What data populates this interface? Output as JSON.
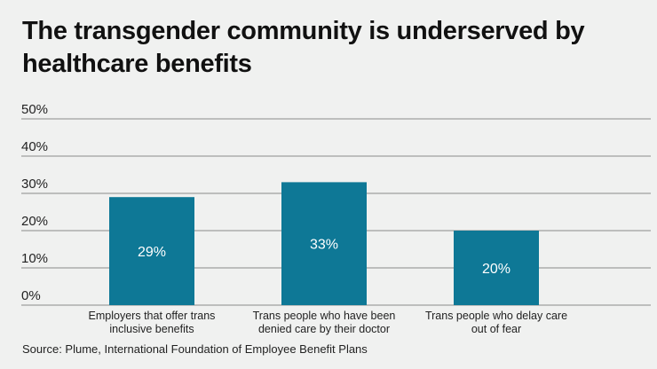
{
  "chart_data": {
    "type": "bar",
    "title": "The transgender community is underserved by healthcare benefits",
    "categories": [
      [
        "Employers that offer trans",
        "inclusive benefits"
      ],
      [
        "Trans people who have been",
        "denied care by their doctor"
      ],
      [
        "Trans people who delay care",
        "out of fear"
      ]
    ],
    "values": [
      29,
      33,
      20
    ],
    "data_labels": [
      "29%",
      "33%",
      "20%"
    ],
    "yticks": [
      0,
      10,
      20,
      30,
      40,
      50
    ],
    "ytick_labels": [
      "0%",
      "10%",
      "20%",
      "30%",
      "40%",
      "50%"
    ],
    "ylim": [
      0,
      50
    ],
    "grid": true,
    "xlabel": "",
    "ylabel": "",
    "bar_color": "#0e7896",
    "grid_color": "#8a8a8a",
    "source": "Source: Plume, International Foundation of Employee Benefit Plans"
  }
}
